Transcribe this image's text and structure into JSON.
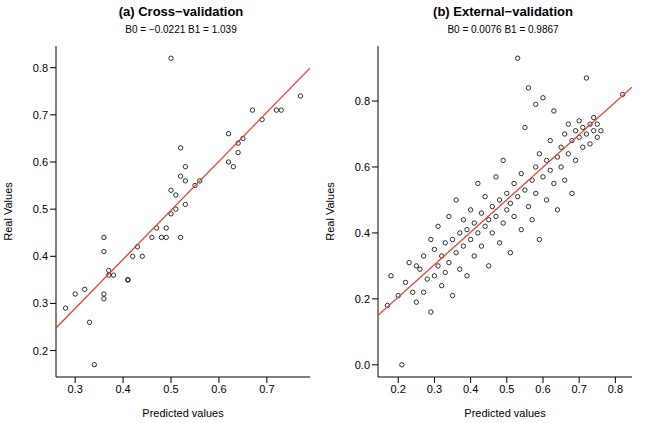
{
  "chart_data": [
    {
      "type": "scatter",
      "title": "(a) Cross−validation",
      "subtitle": "B0 = −0.0221   B1 = 1.039",
      "x_label": "Predicted values",
      "y_label": "Real Values",
      "xlim": [
        0.26,
        0.79
      ],
      "ylim": [
        0.144,
        0.846
      ],
      "xticks": [
        0.3,
        0.4,
        0.5,
        0.6,
        0.7
      ],
      "yticks": [
        0.2,
        0.3,
        0.4,
        0.5,
        0.6,
        0.7,
        0.8
      ],
      "series": [
        {
          "type": "scatter",
          "color": "#000000",
          "marker": "open_circle",
          "x": [
            0.28,
            0.3,
            0.32,
            0.33,
            0.34,
            0.36,
            0.36,
            0.36,
            0.36,
            0.37,
            0.37,
            0.38,
            0.41,
            0.41,
            0.42,
            0.43,
            0.44,
            0.46,
            0.47,
            0.48,
            0.49,
            0.49,
            0.5,
            0.5,
            0.51,
            0.51,
            0.5,
            0.52,
            0.52,
            0.52,
            0.53,
            0.53,
            0.53,
            0.55,
            0.56,
            0.62,
            0.62,
            0.63,
            0.64,
            0.64,
            0.65,
            0.67,
            0.69,
            0.72,
            0.73,
            0.77
          ],
          "values": [
            0.29,
            0.32,
            0.33,
            0.26,
            0.17,
            0.31,
            0.32,
            0.41,
            0.44,
            0.37,
            0.36,
            0.36,
            0.35,
            0.35,
            0.4,
            0.42,
            0.4,
            0.44,
            0.46,
            0.44,
            0.44,
            0.46,
            0.49,
            0.54,
            0.5,
            0.53,
            0.82,
            0.44,
            0.57,
            0.63,
            0.51,
            0.56,
            0.59,
            0.55,
            0.56,
            0.66,
            0.6,
            0.59,
            0.62,
            0.64,
            0.65,
            0.71,
            0.69,
            0.71,
            0.71,
            0.74
          ]
        },
        {
          "type": "line",
          "color": "#e8412f",
          "line_style": "solid",
          "x": [
            0.26,
            0.79
          ],
          "values": [
            0.248,
            0.799
          ]
        }
      ]
    },
    {
      "type": "scatter",
      "title": "(b) External−validation",
      "subtitle": "B0 = 0.0076   B1 = 0.9867",
      "x_label": "Predicted values",
      "y_label": "Real Values",
      "xlim": [
        0.144,
        0.846
      ],
      "ylim": [
        -0.037,
        0.967
      ],
      "xticks": [
        0.2,
        0.3,
        0.4,
        0.5,
        0.6,
        0.7,
        0.8
      ],
      "yticks": [
        {
          "value": 0,
          "label": "0.0"
        },
        0.2,
        0.4,
        0.6,
        0.8
      ],
      "series": [
        {
          "type": "scatter",
          "color": "#000000",
          "marker": "open_circle",
          "x": [
            0.17,
            0.18,
            0.2,
            0.21,
            0.22,
            0.23,
            0.24,
            0.25,
            0.25,
            0.26,
            0.27,
            0.27,
            0.28,
            0.29,
            0.29,
            0.3,
            0.3,
            0.31,
            0.31,
            0.32,
            0.32,
            0.33,
            0.33,
            0.34,
            0.34,
            0.35,
            0.35,
            0.36,
            0.36,
            0.37,
            0.37,
            0.38,
            0.38,
            0.39,
            0.39,
            0.4,
            0.4,
            0.41,
            0.41,
            0.42,
            0.42,
            0.43,
            0.43,
            0.44,
            0.44,
            0.45,
            0.45,
            0.46,
            0.46,
            0.47,
            0.47,
            0.48,
            0.48,
            0.49,
            0.49,
            0.5,
            0.5,
            0.51,
            0.51,
            0.52,
            0.52,
            0.53,
            0.53,
            0.54,
            0.54,
            0.55,
            0.55,
            0.56,
            0.56,
            0.57,
            0.57,
            0.58,
            0.58,
            0.59,
            0.59,
            0.6,
            0.6,
            0.61,
            0.61,
            0.62,
            0.62,
            0.63,
            0.63,
            0.64,
            0.64,
            0.65,
            0.65,
            0.66,
            0.66,
            0.67,
            0.67,
            0.68,
            0.68,
            0.69,
            0.69,
            0.7,
            0.7,
            0.71,
            0.71,
            0.72,
            0.72,
            0.73,
            0.73,
            0.74,
            0.74,
            0.75,
            0.75,
            0.76,
            0.82,
            0.58
          ],
          "values": [
            0.18,
            0.27,
            0.21,
            0.0,
            0.25,
            0.31,
            0.22,
            0.3,
            0.19,
            0.29,
            0.33,
            0.22,
            0.26,
            0.38,
            0.16,
            0.27,
            0.35,
            0.3,
            0.42,
            0.24,
            0.33,
            0.37,
            0.28,
            0.45,
            0.31,
            0.21,
            0.38,
            0.34,
            0.5,
            0.29,
            0.4,
            0.36,
            0.44,
            0.27,
            0.41,
            0.38,
            0.47,
            0.33,
            0.43,
            0.4,
            0.55,
            0.36,
            0.46,
            0.42,
            0.51,
            0.3,
            0.44,
            0.4,
            0.48,
            0.57,
            0.45,
            0.37,
            0.5,
            0.43,
            0.62,
            0.47,
            0.52,
            0.34,
            0.49,
            0.55,
            0.45,
            0.93,
            0.51,
            0.41,
            0.58,
            0.53,
            0.72,
            0.48,
            0.84,
            0.56,
            0.44,
            0.6,
            0.52,
            0.64,
            0.38,
            0.57,
            0.81,
            0.62,
            0.5,
            0.59,
            0.68,
            0.77,
            0.55,
            0.63,
            0.47,
            0.66,
            0.6,
            0.7,
            0.56,
            0.64,
            0.73,
            0.68,
            0.52,
            0.71,
            0.62,
            0.69,
            0.74,
            0.66,
            0.72,
            0.87,
            0.7,
            0.73,
            0.67,
            0.71,
            0.75,
            0.69,
            0.73,
            0.71,
            0.82,
            0.79
          ]
        },
        {
          "type": "line",
          "color": "#e8412f",
          "line_style": "solid",
          "x": [
            0.144,
            0.846
          ],
          "values": [
            0.15,
            0.842
          ]
        }
      ]
    }
  ]
}
